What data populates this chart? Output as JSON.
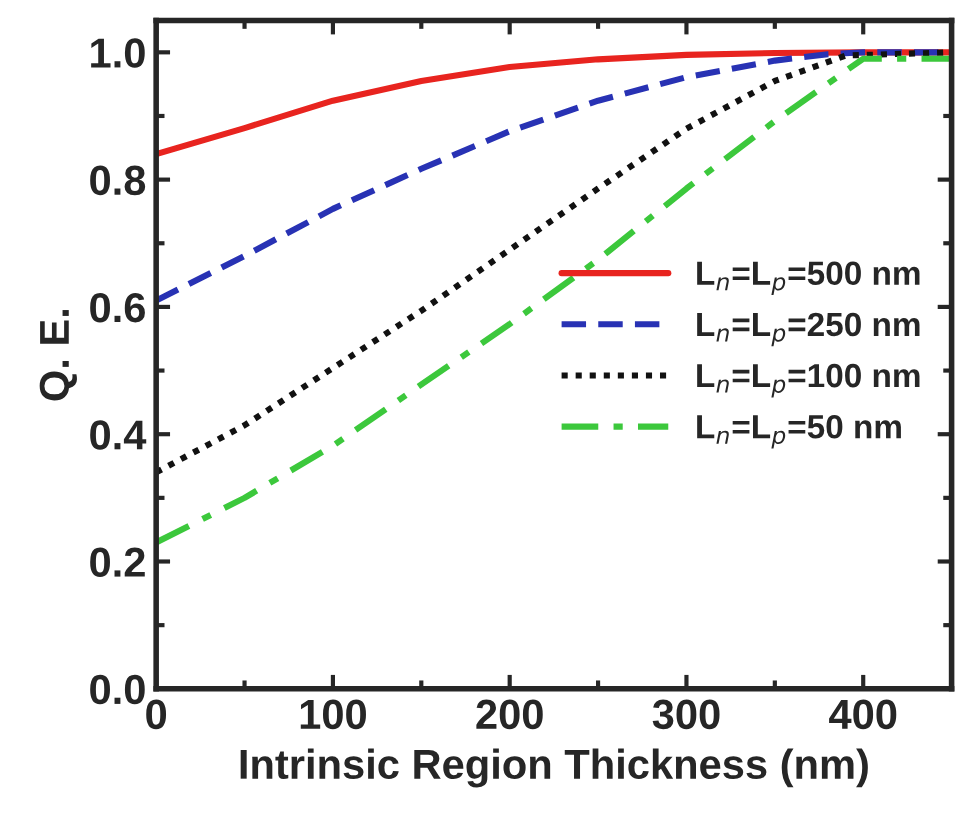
{
  "chart_data": {
    "type": "line",
    "xlabel": "Intrinsic Region Thickness (nm)",
    "ylabel": "Q. E.",
    "xlim": [
      0,
      450
    ],
    "ylim": [
      0,
      1.05
    ],
    "xticks": [
      0,
      100,
      200,
      300,
      400
    ],
    "yticks": [
      {
        "value": 0,
        "label": "0.0"
      },
      0.2,
      0.4,
      0.6,
      0.8,
      {
        "value": 1,
        "label": "1.0"
      }
    ],
    "legend": "center right",
    "grid": false,
    "series": [
      {
        "name": "L$_{n}$=L$_{p}$=500 nm",
        "color": "#e8241f",
        "line_style": "solid",
        "x": [
          0,
          50,
          100,
          150,
          200,
          250,
          300,
          350,
          400,
          450
        ],
        "values": [
          0.84,
          0.881,
          0.924,
          0.955,
          0.977,
          0.989,
          0.996,
          0.999,
          1.0,
          1.0
        ]
      },
      {
        "name": "L$_{n}$=L$_{p}$=250 nm",
        "color": "#2832b4",
        "line_style": "dashed",
        "x": [
          0,
          50,
          100,
          150,
          200,
          250,
          300,
          350,
          380,
          400,
          450
        ],
        "values": [
          0.61,
          0.68,
          0.754,
          0.817,
          0.876,
          0.924,
          0.961,
          0.987,
          0.997,
          1.0,
          1.0
        ]
      },
      {
        "name": "L$_{n}$=L$_{p}$=100 nm",
        "color": "#111111",
        "line_style": "dotted",
        "x": [
          0,
          50,
          100,
          150,
          200,
          250,
          300,
          350,
          390,
          450
        ],
        "values": [
          0.34,
          0.414,
          0.504,
          0.594,
          0.69,
          0.786,
          0.88,
          0.955,
          0.995,
          1.0
        ]
      },
      {
        "name": "L$_{n}$=L$_{p}$=50 nm",
        "color": "#3cc83c",
        "line_style": "dashdot",
        "x": [
          0,
          50,
          100,
          150,
          200,
          250,
          300,
          350,
          400,
          410,
          450
        ],
        "values": [
          0.23,
          0.3,
          0.382,
          0.478,
          0.573,
          0.674,
          0.786,
          0.892,
          0.99,
          0.99,
          0.99
        ]
      }
    ]
  }
}
